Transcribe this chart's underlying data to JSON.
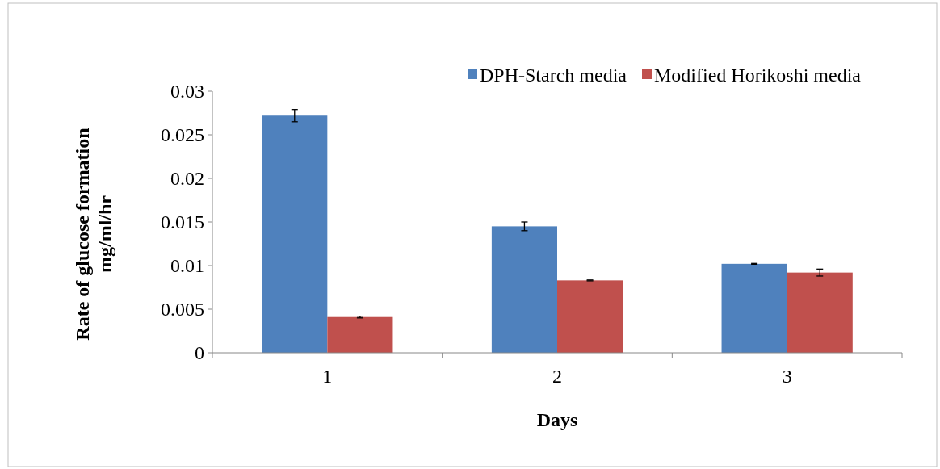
{
  "chart_data": {
    "type": "bar",
    "xlabel": "Days",
    "ylabel": "Rate of glucose formation\nmg/ml/hr",
    "categories": [
      "1",
      "2",
      "3"
    ],
    "series": [
      {
        "name": "DPH-Starch media",
        "color": "#4f81bd",
        "values": [
          0.0272,
          0.0145,
          0.0102
        ],
        "errors": [
          0.0007,
          0.0005,
          5e-05
        ]
      },
      {
        "name": "Modified Horikoshi media",
        "color": "#c0504d",
        "values": [
          0.0041,
          0.0083,
          0.0092
        ],
        "errors": [
          0.0001,
          5e-05,
          0.0004
        ]
      }
    ],
    "ylim": [
      0,
      0.03
    ],
    "yticks": [
      0,
      0.005,
      0.01,
      0.015,
      0.02,
      0.025,
      0.03
    ],
    "grid": false,
    "legend": "top right"
  }
}
